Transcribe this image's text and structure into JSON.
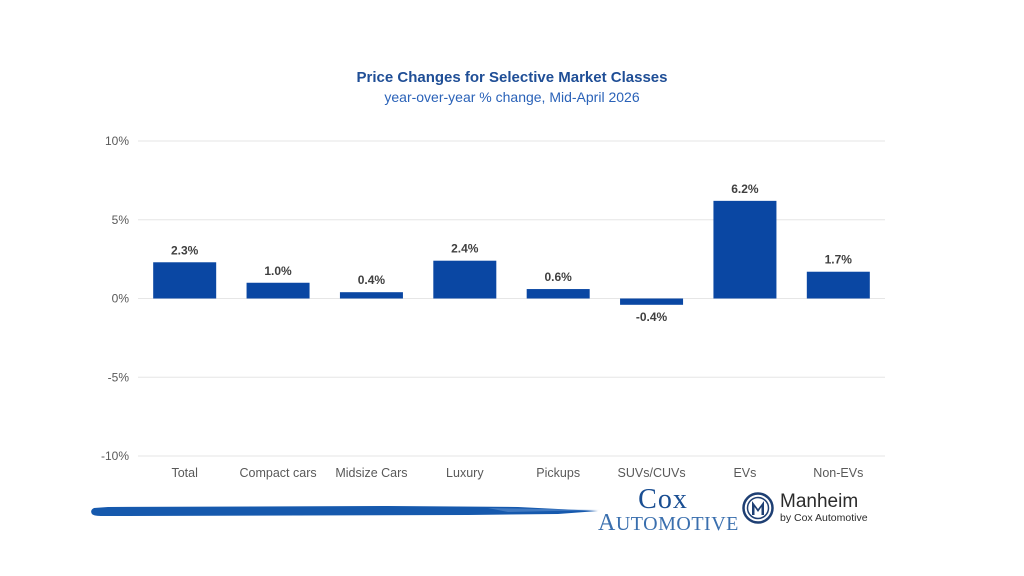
{
  "chart_data": {
    "type": "bar",
    "title": "Price Changes for Selective Market Classes",
    "subtitle": "year-over-year % change, Mid-April 2026",
    "xlabel": "",
    "ylabel": "",
    "categories": [
      "Total",
      "Compact cars",
      "Midsize Cars",
      "Luxury",
      "Pickups",
      "SUVs/CUVs",
      "EVs",
      "Non-EVs"
    ],
    "values": [
      2.3,
      1.0,
      0.4,
      2.4,
      0.6,
      -0.4,
      6.2,
      1.7
    ],
    "data_labels": [
      "2.3%",
      "1.0%",
      "0.4%",
      "2.4%",
      "0.6%",
      "-0.4%",
      "6.2%",
      "1.7%"
    ],
    "ylim": [
      -10,
      10
    ],
    "yticks": [
      10,
      5,
      0,
      -5,
      -10
    ],
    "ytick_labels": [
      "10%",
      "5%",
      "0%",
      "-5%",
      "-10%"
    ],
    "grid": true,
    "legend": "none",
    "bar_color": "#0a47a3"
  },
  "branding": {
    "cox_line1": "Cox",
    "cox_line2": "Automotive",
    "manheim_name": "Manheim",
    "manheim_by": "by Cox Automotive",
    "brand_color": "#1a4e92"
  }
}
